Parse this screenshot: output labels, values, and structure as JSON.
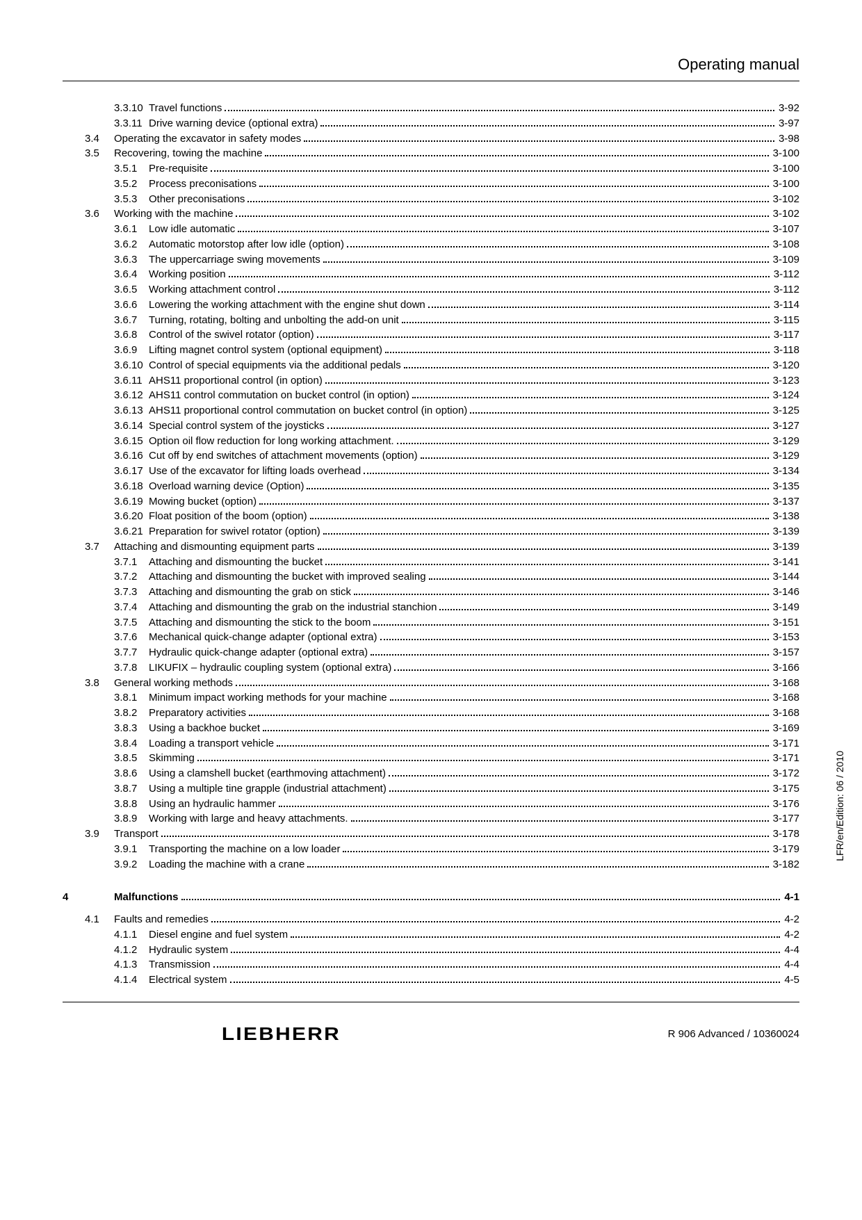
{
  "header_title": "Operating manual",
  "side_text": "LFR/en/Edition: 06 / 2010",
  "brand": "LIEBHERR",
  "doc_ref": "R 906 Advanced / 10360024",
  "rows": [
    {
      "l": 3,
      "n": "3.3.10",
      "t": "Travel functions",
      "p": "3-92"
    },
    {
      "l": 3,
      "n": "3.3.11",
      "t": "Drive warning device (optional extra)",
      "p": "3-97"
    },
    {
      "l": 2,
      "n": "3.4",
      "t": "Operating the excavator in safety modes",
      "p": "3-98"
    },
    {
      "l": 2,
      "n": "3.5",
      "t": "Recovering, towing the machine",
      "p": "3-100"
    },
    {
      "l": 3,
      "n": "3.5.1",
      "t": "Pre-requisite",
      "p": "3-100"
    },
    {
      "l": 3,
      "n": "3.5.2",
      "t": "Process preconisations",
      "p": "3-100"
    },
    {
      "l": 3,
      "n": "3.5.3",
      "t": "Other preconisations",
      "p": "3-102"
    },
    {
      "l": 2,
      "n": "3.6",
      "t": "Working with the machine",
      "p": "3-102"
    },
    {
      "l": 3,
      "n": "3.6.1",
      "t": "Low idle automatic",
      "p": "3-107"
    },
    {
      "l": 3,
      "n": "3.6.2",
      "t": "Automatic motorstop after low idle (option)",
      "p": "3-108"
    },
    {
      "l": 3,
      "n": "3.6.3",
      "t": "The uppercarriage swing movements",
      "p": "3-109"
    },
    {
      "l": 3,
      "n": "3.6.4",
      "t": "Working position",
      "p": "3-112"
    },
    {
      "l": 3,
      "n": "3.6.5",
      "t": "Working attachment control",
      "p": "3-112"
    },
    {
      "l": 3,
      "n": "3.6.6",
      "t": "Lowering the working attachment with the engine shut down",
      "p": "3-114"
    },
    {
      "l": 3,
      "n": "3.6.7",
      "t": "Turning, rotating, bolting and unbolting the add-on unit",
      "p": "3-115"
    },
    {
      "l": 3,
      "n": "3.6.8",
      "t": "Control of the swivel rotator (option)",
      "p": "3-117"
    },
    {
      "l": 3,
      "n": "3.6.9",
      "t": "Lifting magnet control system (optional equipment)",
      "p": "3-118"
    },
    {
      "l": 3,
      "n": "3.6.10",
      "t": "Control of special equipments via the additional pedals",
      "p": "3-120"
    },
    {
      "l": 3,
      "n": "3.6.11",
      "t": "AHS11 proportional control (in option)",
      "p": "3-123"
    },
    {
      "l": 3,
      "n": "3.6.12",
      "t": "AHS11 control commutation on bucket control (in option)",
      "p": "3-124"
    },
    {
      "l": 3,
      "n": "3.6.13",
      "t": "AHS11 proportional control commutation on bucket control (in option)",
      "p": "3-125"
    },
    {
      "l": 3,
      "n": "3.6.14",
      "t": "Special control system of the joysticks",
      "p": "3-127"
    },
    {
      "l": 3,
      "n": "3.6.15",
      "t": "Option oil flow reduction for long working attachment.",
      "p": "3-129"
    },
    {
      "l": 3,
      "n": "3.6.16",
      "t": "Cut off by end switches of attachment movements (option)",
      "p": "3-129"
    },
    {
      "l": 3,
      "n": "3.6.17",
      "t": "Use of the excavator for lifting loads overhead",
      "p": "3-134"
    },
    {
      "l": 3,
      "n": "3.6.18",
      "t": "Overload warning device (Option)",
      "p": "3-135"
    },
    {
      "l": 3,
      "n": "3.6.19",
      "t": "Mowing bucket (option)",
      "p": "3-137"
    },
    {
      "l": 3,
      "n": "3.6.20",
      "t": "Float position of the boom (option)",
      "p": "3-138"
    },
    {
      "l": 3,
      "n": "3.6.21",
      "t": "Preparation for swivel rotator (option)",
      "p": "3-139"
    },
    {
      "l": 2,
      "n": "3.7",
      "t": "Attaching and dismounting equipment parts",
      "p": "3-139"
    },
    {
      "l": 3,
      "n": "3.7.1",
      "t": "Attaching and dismounting the bucket",
      "p": "3-141"
    },
    {
      "l": 3,
      "n": "3.7.2",
      "t": "Attaching and dismounting the bucket with improved sealing",
      "p": "3-144"
    },
    {
      "l": 3,
      "n": "3.7.3",
      "t": "Attaching and dismounting the grab on stick",
      "p": "3-146"
    },
    {
      "l": 3,
      "n": "3.7.4",
      "t": "Attaching and dismounting the grab on the industrial stanchion",
      "p": "3-149"
    },
    {
      "l": 3,
      "n": "3.7.5",
      "t": "Attaching and dismounting the stick to the boom",
      "p": "3-151"
    },
    {
      "l": 3,
      "n": "3.7.6",
      "t": "Mechanical quick-change adapter (optional extra)",
      "p": "3-153"
    },
    {
      "l": 3,
      "n": "3.7.7",
      "t": "Hydraulic quick-change adapter (optional extra)",
      "p": "3-157"
    },
    {
      "l": 3,
      "n": "3.7.8",
      "t": "LIKUFIX – hydraulic coupling system (optional extra)",
      "p": "3-166"
    },
    {
      "l": 2,
      "n": "3.8",
      "t": "General working methods",
      "p": "3-168"
    },
    {
      "l": 3,
      "n": "3.8.1",
      "t": "Minimum impact working methods for your machine",
      "p": "3-168"
    },
    {
      "l": 3,
      "n": "3.8.2",
      "t": "Preparatory activities",
      "p": "3-168"
    },
    {
      "l": 3,
      "n": "3.8.3",
      "t": "Using a backhoe bucket",
      "p": "3-169"
    },
    {
      "l": 3,
      "n": "3.8.4",
      "t": "Loading a transport vehicle",
      "p": "3-171"
    },
    {
      "l": 3,
      "n": "3.8.5",
      "t": "Skimming",
      "p": "3-171"
    },
    {
      "l": 3,
      "n": "3.8.6",
      "t": "Using a clamshell bucket (earthmoving attachment)",
      "p": "3-172"
    },
    {
      "l": 3,
      "n": "3.8.7",
      "t": "Using a multiple tine grapple (industrial attachment)",
      "p": "3-175"
    },
    {
      "l": 3,
      "n": "3.8.8",
      "t": "Using an hydraulic hammer",
      "p": "3-176"
    },
    {
      "l": 3,
      "n": "3.8.9",
      "t": "Working with large and heavy attachments.",
      "p": "3-177"
    },
    {
      "l": 2,
      "n": "3.9",
      "t": "Transport",
      "p": "3-178"
    },
    {
      "l": 3,
      "n": "3.9.1",
      "t": "Transporting the machine on a low loader",
      "p": "3-179"
    },
    {
      "l": 3,
      "n": "3.9.2",
      "t": "Loading the machine with a crane",
      "p": "3-182"
    },
    {
      "l": 1,
      "n": "4",
      "t": "Malfunctions",
      "p": "4-1",
      "chapter": true
    },
    {
      "l": 2,
      "n": "4.1",
      "t": "Faults and remedies",
      "p": "4-2"
    },
    {
      "l": 3,
      "n": "4.1.1",
      "t": "Diesel engine and fuel system",
      "p": "4-2"
    },
    {
      "l": 3,
      "n": "4.1.2",
      "t": "Hydraulic system",
      "p": "4-4"
    },
    {
      "l": 3,
      "n": "4.1.3",
      "t": "Transmission",
      "p": "4-4"
    },
    {
      "l": 3,
      "n": "4.1.4",
      "t": "Electrical system",
      "p": "4-5"
    }
  ]
}
